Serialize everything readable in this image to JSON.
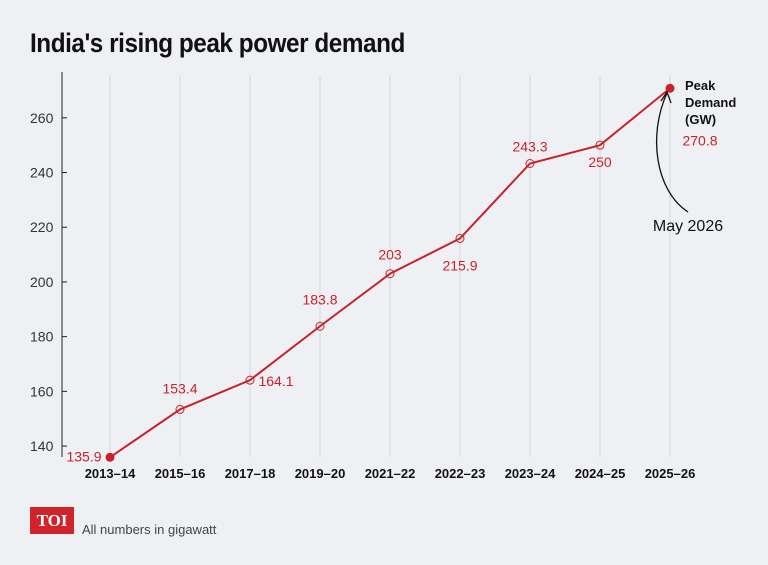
{
  "title": "India's rising peak power demand",
  "footer": {
    "logo": "TOI",
    "note": "All numbers in gigawatt"
  },
  "colors": {
    "line": "#c8232c",
    "label": "#c8232c",
    "grid": "#d6d8dc",
    "axis": "#222",
    "background": "#eef0f4"
  },
  "chart_data": {
    "type": "line",
    "title": "India's rising peak power demand",
    "xlabel": "",
    "ylabel": "",
    "categories": [
      "2013–14",
      "2015–16",
      "2017–18",
      "2019–20",
      "2021–22",
      "2022–23",
      "2023–24",
      "2024–25",
      "2025–26"
    ],
    "values": [
      135.9,
      153.4,
      164.1,
      183.8,
      203,
      215.9,
      243.3,
      250,
      270.8
    ],
    "data_labels": [
      "135.9",
      "153.4",
      "164.1",
      "183.8",
      "203",
      "215.9",
      "243.3",
      "250",
      "270.8"
    ],
    "ylim": [
      136,
      272
    ],
    "yticks": [
      140,
      160,
      180,
      200,
      220,
      240,
      260
    ],
    "grid": "vertical",
    "series_label": "Peak\nDemand\n(GW)",
    "annotation": "May 2026"
  }
}
